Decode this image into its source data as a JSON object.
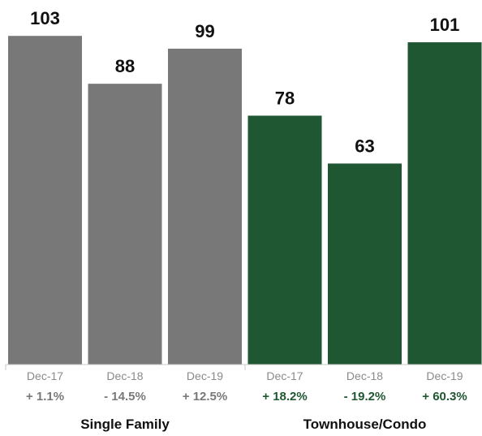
{
  "colors": {
    "single_family": "#777877",
    "townhouse_condo": "#1f5732",
    "tick_gray": "#8a8a8a",
    "axis": "#c8c8c8"
  },
  "chart_data": {
    "type": "bar",
    "ylim": [
      0,
      110
    ],
    "groups": [
      {
        "name": "Single Family",
        "color_key": "single_family",
        "categories": [
          "Dec-17",
          "Dec-18",
          "Dec-19"
        ],
        "values": [
          103,
          88,
          99
        ],
        "changes": [
          "+ 1.1%",
          "- 14.5%",
          "+ 12.5%"
        ]
      },
      {
        "name": "Townhouse/Condo",
        "color_key": "townhouse_condo",
        "categories": [
          "Dec-17",
          "Dec-18",
          "Dec-19"
        ],
        "values": [
          78,
          63,
          101
        ],
        "changes": [
          "+ 18.2%",
          "- 19.2%",
          "+ 60.3%"
        ]
      }
    ]
  }
}
